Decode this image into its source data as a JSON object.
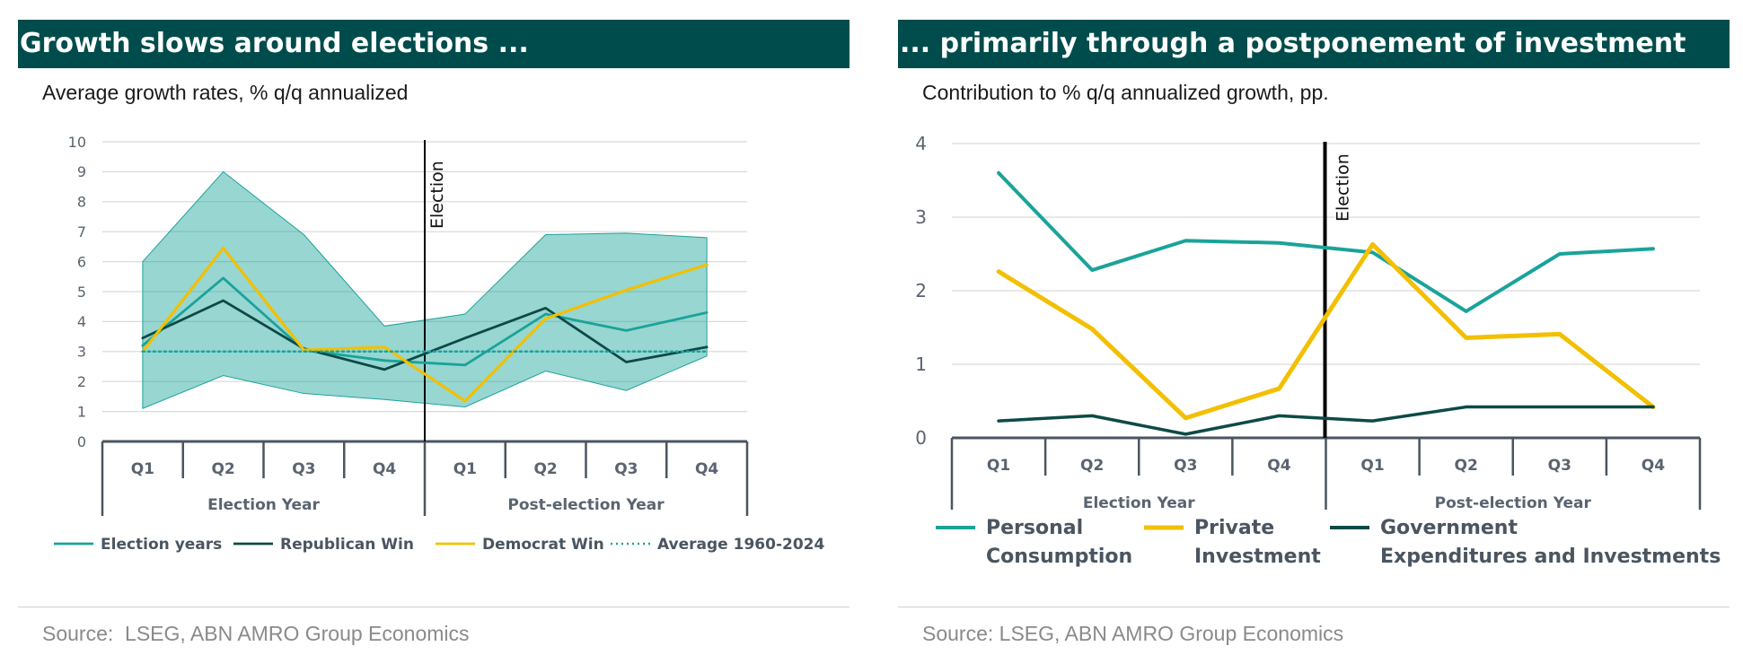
{
  "left_panel": {
    "title": "Growth slows around elections ...",
    "subtitle": "Average growth rates, % q/q annualized",
    "source": "Source:  LSEG, ABN AMRO Group Economics"
  },
  "right_panel": {
    "title": "... primarily through a postponement of investment",
    "subtitle": "Contribution to % q/q annualized growth, pp.",
    "source": "Source: LSEG, ABN AMRO Group Economics"
  },
  "colors": {
    "teal": "#1aa39a",
    "dark_teal": "#0d4a47",
    "yellow": "#f2c000",
    "band_fill": "#1aa39a",
    "band_opacity": 0.45,
    "header": "#004c4c"
  },
  "chart_data": [
    {
      "type": "line",
      "categories": [
        "Q1",
        "Q2",
        "Q3",
        "Q4",
        "Q1",
        "Q2",
        "Q3",
        "Q4"
      ],
      "groups": [
        {
          "label": "Election Year",
          "span": [
            0,
            3
          ]
        },
        {
          "label": "Post-election Year",
          "span": [
            4,
            7
          ]
        }
      ],
      "annotation": "Election",
      "annotation_after_index": 3,
      "ylim": [
        0,
        10
      ],
      "yticks": [
        0,
        1,
        2,
        3,
        4,
        5,
        6,
        7,
        8,
        9,
        10
      ],
      "grid": true,
      "legend_position": "bottom",
      "band": {
        "lower": [
          1.1,
          2.2,
          1.6,
          1.4,
          1.15,
          2.35,
          1.7,
          2.85
        ],
        "upper": [
          6.0,
          9.0,
          6.9,
          3.85,
          4.25,
          6.9,
          6.95,
          6.8
        ]
      },
      "series": [
        {
          "name": "Election years",
          "values": [
            3.2,
            5.45,
            3.05,
            2.7,
            2.55,
            4.25,
            3.7,
            4.3
          ],
          "color": "teal",
          "style": "solid"
        },
        {
          "name": "Republican Win",
          "values": [
            3.45,
            4.7,
            3.1,
            2.4,
            3.45,
            4.45,
            2.65,
            3.15
          ],
          "color": "dark_teal",
          "style": "solid"
        },
        {
          "name": "Democrat Win",
          "values": [
            3.0,
            6.45,
            3.05,
            3.15,
            1.35,
            4.1,
            5.05,
            5.9
          ],
          "color": "yellow",
          "style": "solid"
        },
        {
          "name": "Average 1960-2024",
          "values": [
            3.0,
            3.0,
            3.0,
            3.0,
            3.0,
            3.0,
            3.0,
            3.0
          ],
          "color": "teal",
          "style": "dotted"
        }
      ]
    },
    {
      "type": "line",
      "categories": [
        "Q1",
        "Q2",
        "Q3",
        "Q4",
        "Q1",
        "Q2",
        "Q3",
        "Q4"
      ],
      "groups": [
        {
          "label": "Election Year",
          "span": [
            0,
            3
          ]
        },
        {
          "label": "Post-election Year",
          "span": [
            4,
            7
          ]
        }
      ],
      "annotation": "Election",
      "annotation_after_index": 3,
      "ylim": [
        0,
        4
      ],
      "yticks": [
        0,
        1,
        2,
        3,
        4
      ],
      "grid": true,
      "legend_position": "bottom",
      "series": [
        {
          "name": "Personal Consumption",
          "name_lines": [
            "Personal",
            "Consumption"
          ],
          "values": [
            3.6,
            2.28,
            2.68,
            2.65,
            2.52,
            1.72,
            2.5,
            2.57
          ],
          "color": "teal"
        },
        {
          "name": "Private Investment",
          "name_lines": [
            "Private",
            "Investment"
          ],
          "values": [
            2.26,
            1.48,
            0.27,
            0.67,
            2.63,
            1.36,
            1.41,
            0.42
          ],
          "color": "yellow"
        },
        {
          "name": "Government Expenditures and Investments",
          "name_lines": [
            "Government",
            "Expenditures and Investments"
          ],
          "values": [
            0.23,
            0.3,
            0.05,
            0.3,
            0.23,
            0.42,
            0.42,
            0.42
          ],
          "color": "dark_teal"
        }
      ]
    }
  ]
}
